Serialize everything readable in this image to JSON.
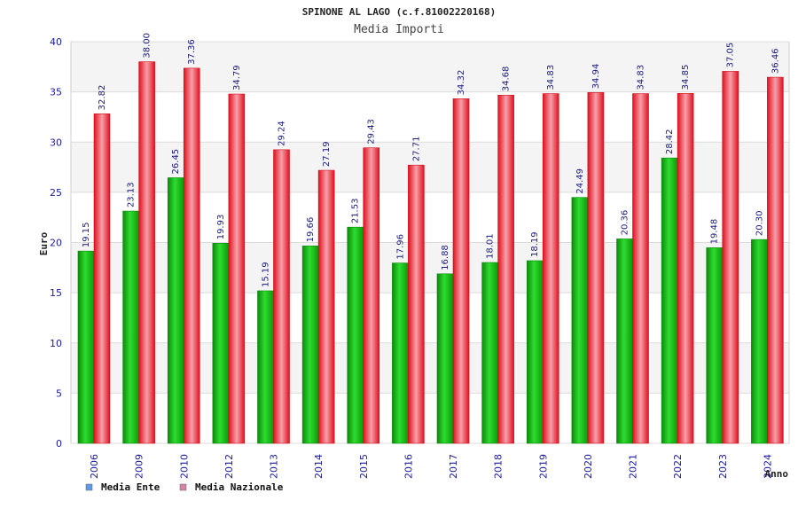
{
  "chart_data": {
    "type": "bar",
    "title": "SPINONE AL LAGO (c.f.81002220168)",
    "subtitle": "Media Importi",
    "xlabel": "Anno",
    "ylabel": "Euro",
    "ylim": [
      0,
      40
    ],
    "yticks": [
      0,
      5,
      10,
      15,
      20,
      25,
      30,
      35,
      40
    ],
    "grid": true,
    "legend_position": "bottom-left",
    "categories": [
      "2006",
      "2009",
      "2010",
      "2012",
      "2013",
      "2014",
      "2015",
      "2016",
      "2017",
      "2018",
      "2019",
      "2020",
      "2021",
      "2022",
      "2023",
      "2024"
    ],
    "series": [
      {
        "name": "Media Ente",
        "color": "#22bb22",
        "values": [
          19.15,
          23.13,
          26.45,
          19.93,
          15.19,
          19.66,
          21.53,
          17.96,
          16.88,
          18.01,
          18.19,
          24.49,
          20.36,
          28.42,
          19.48,
          20.3
        ],
        "labels": [
          "19.15",
          "23.13",
          "26.45",
          "19.93",
          "15.19",
          "19.66",
          "21.53",
          "17.96",
          "16.88",
          "18.01",
          "18.19",
          "24.49",
          "20.36",
          "28.42",
          "19.48",
          "20.30"
        ]
      },
      {
        "name": "Media Nazionale",
        "color": "#ee1c2c",
        "values": [
          32.82,
          38.0,
          37.36,
          34.79,
          29.24,
          27.19,
          29.43,
          27.71,
          34.32,
          34.68,
          34.83,
          34.94,
          34.83,
          34.85,
          37.05,
          36.46
        ],
        "labels": [
          "32.82",
          "38.00",
          "37.36",
          "34.79",
          "29.24",
          "27.19",
          "29.43",
          "27.71",
          "34.32",
          "34.68",
          "34.83",
          "34.94",
          "34.83",
          "34.85",
          "37.05",
          "36.46"
        ]
      }
    ]
  },
  "legend": {
    "items": [
      {
        "label": "Media Ente",
        "color": "#5b9bea"
      },
      {
        "label": "Media Nazionale",
        "color": "#d980a8"
      }
    ]
  }
}
